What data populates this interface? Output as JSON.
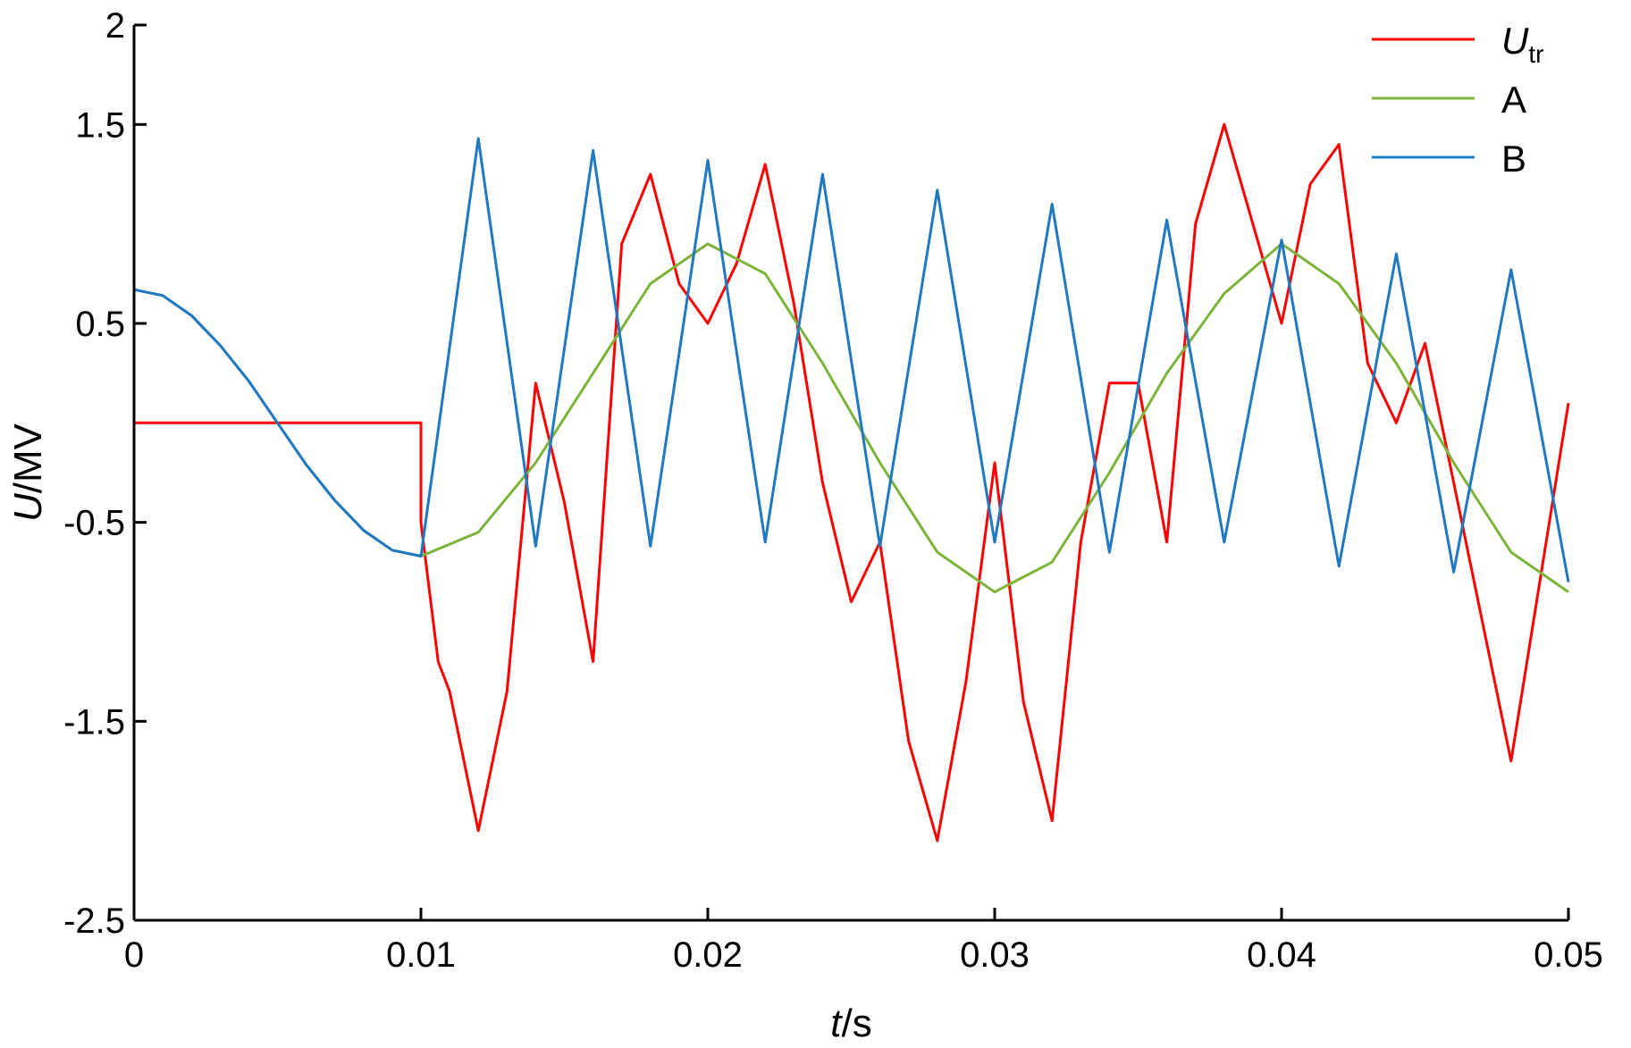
{
  "chart_data": {
    "type": "line",
    "xlabel": {
      "italic": "t",
      "rest": "/s"
    },
    "ylabel": {
      "italic": "U",
      "rest": "/MV"
    },
    "xlim": [
      0,
      0.05
    ],
    "ylim": [
      -2.5,
      2
    ],
    "xticks": [
      0,
      0.01,
      0.02,
      0.03,
      0.04,
      0.05
    ],
    "xtick_labels": [
      "0",
      "0.01",
      "0.02",
      "0.03",
      "0.04",
      "0.05"
    ],
    "yticks": [
      -2.5,
      -1.5,
      -0.5,
      0.5,
      1.5,
      2
    ],
    "ytick_labels": [
      "-2.5",
      "-1.5",
      "-0.5",
      "0.5",
      "1.5",
      "2"
    ],
    "grid": false,
    "legend_position": "top-right",
    "series": [
      {
        "name": "U",
        "name_sub": "tr",
        "color": "#ff0000",
        "x": [
          0,
          0.01,
          0.01,
          0.0106,
          0.011,
          0.012,
          0.013,
          0.014,
          0.015,
          0.016,
          0.017,
          0.018,
          0.019,
          0.02,
          0.021,
          0.022,
          0.023,
          0.024,
          0.025,
          0.026,
          0.027,
          0.028,
          0.029,
          0.03,
          0.031,
          0.032,
          0.033,
          0.034,
          0.035,
          0.036,
          0.037,
          0.038,
          0.039,
          0.04,
          0.041,
          0.042,
          0.043,
          0.044,
          0.045,
          0.046,
          0.047,
          0.048,
          0.049,
          0.05
        ],
        "y": [
          0,
          0,
          -0.5,
          -1.2,
          -1.35,
          -2.05,
          -1.35,
          0.2,
          -0.4,
          -1.2,
          0.9,
          1.25,
          0.7,
          0.5,
          0.8,
          1.3,
          0.6,
          -0.3,
          -0.9,
          -0.6,
          -1.6,
          -2.1,
          -1.3,
          -0.2,
          -1.4,
          -2.0,
          -0.6,
          0.2,
          0.2,
          -0.6,
          1.0,
          1.5,
          1.0,
          0.5,
          1.2,
          1.4,
          0.3,
          0.0,
          0.4,
          -0.3,
          -1.0,
          -1.7,
          -0.8,
          0.1
        ]
      },
      {
        "name": "A",
        "color": "#7db33a",
        "x": [
          0,
          0.001,
          0.002,
          0.003,
          0.004,
          0.005,
          0.006,
          0.007,
          0.008,
          0.009,
          0.01,
          0.012,
          0.014,
          0.016,
          0.018,
          0.02,
          0.022,
          0.024,
          0.026,
          0.028,
          0.03,
          0.032,
          0.034,
          0.036,
          0.038,
          0.04,
          0.042,
          0.044,
          0.046,
          0.048,
          0.05
        ],
        "y": [
          0.67,
          0.64,
          0.54,
          0.39,
          0.21,
          0.0,
          -0.21,
          -0.39,
          -0.54,
          -0.64,
          -0.67,
          -0.55,
          -0.2,
          0.25,
          0.7,
          0.9,
          0.75,
          0.3,
          -0.2,
          -0.65,
          -0.85,
          -0.7,
          -0.25,
          0.25,
          0.65,
          0.9,
          0.7,
          0.3,
          -0.2,
          -0.65,
          -0.85
        ]
      },
      {
        "name": "B",
        "color": "#1f78c1",
        "x": [
          0,
          0.001,
          0.002,
          0.003,
          0.004,
          0.005,
          0.006,
          0.007,
          0.008,
          0.009,
          0.01,
          0.012,
          0.014,
          0.016,
          0.018,
          0.02,
          0.022,
          0.024,
          0.026,
          0.028,
          0.03,
          0.032,
          0.034,
          0.036,
          0.038,
          0.04,
          0.042,
          0.044,
          0.046,
          0.048,
          0.05
        ],
        "y": [
          0.67,
          0.64,
          0.54,
          0.39,
          0.21,
          0.0,
          -0.21,
          -0.39,
          -0.54,
          -0.64,
          -0.67,
          1.43,
          -0.62,
          1.37,
          -0.62,
          1.32,
          -0.6,
          1.25,
          -0.62,
          1.17,
          -0.6,
          1.1,
          -0.65,
          1.02,
          -0.6,
          0.92,
          -0.72,
          0.85,
          -0.75,
          0.77,
          -0.8
        ]
      }
    ]
  }
}
